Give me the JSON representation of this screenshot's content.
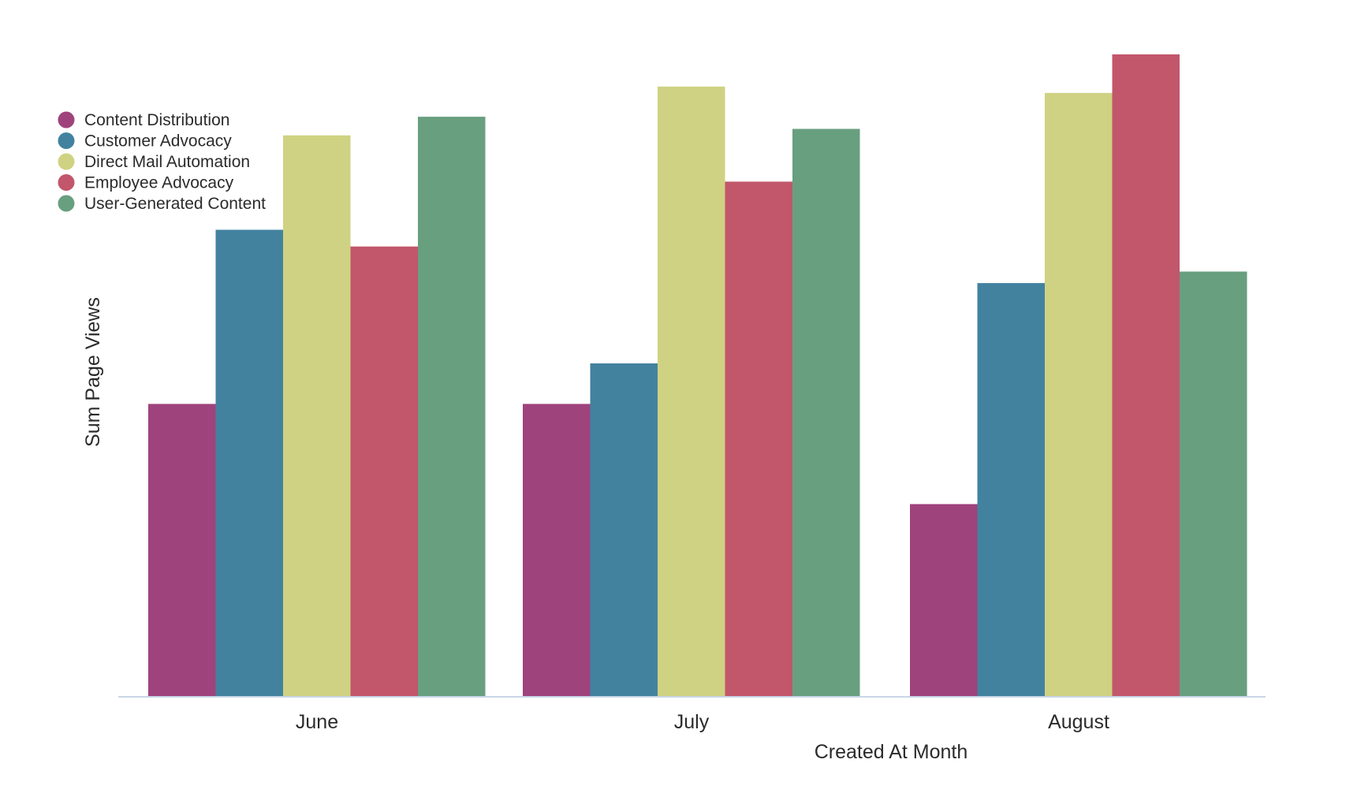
{
  "chart_data": {
    "type": "bar",
    "title": "",
    "xlabel": "Created At Month",
    "ylabel": "Sum Page Views",
    "categories": [
      "June",
      "July",
      "August"
    ],
    "ylim": [
      0,
      100
    ],
    "grid": false,
    "legend_position": "top-left",
    "series": [
      {
        "name": "Content Distribution",
        "color": "#9f437c",
        "values": [
          45.6,
          45.6,
          30.0
        ]
      },
      {
        "name": "Customer Advocacy",
        "color": "#42829f",
        "values": [
          72.7,
          51.9,
          64.4
        ]
      },
      {
        "name": "Direct Mail Automation",
        "color": "#cfd282",
        "values": [
          87.4,
          95.0,
          94.0
        ]
      },
      {
        "name": "Employee Advocacy",
        "color": "#c2566b",
        "values": [
          70.1,
          80.2,
          100.0
        ]
      },
      {
        "name": "User-Generated Content",
        "color": "#689f7f",
        "values": [
          90.3,
          88.4,
          66.2
        ]
      }
    ]
  }
}
